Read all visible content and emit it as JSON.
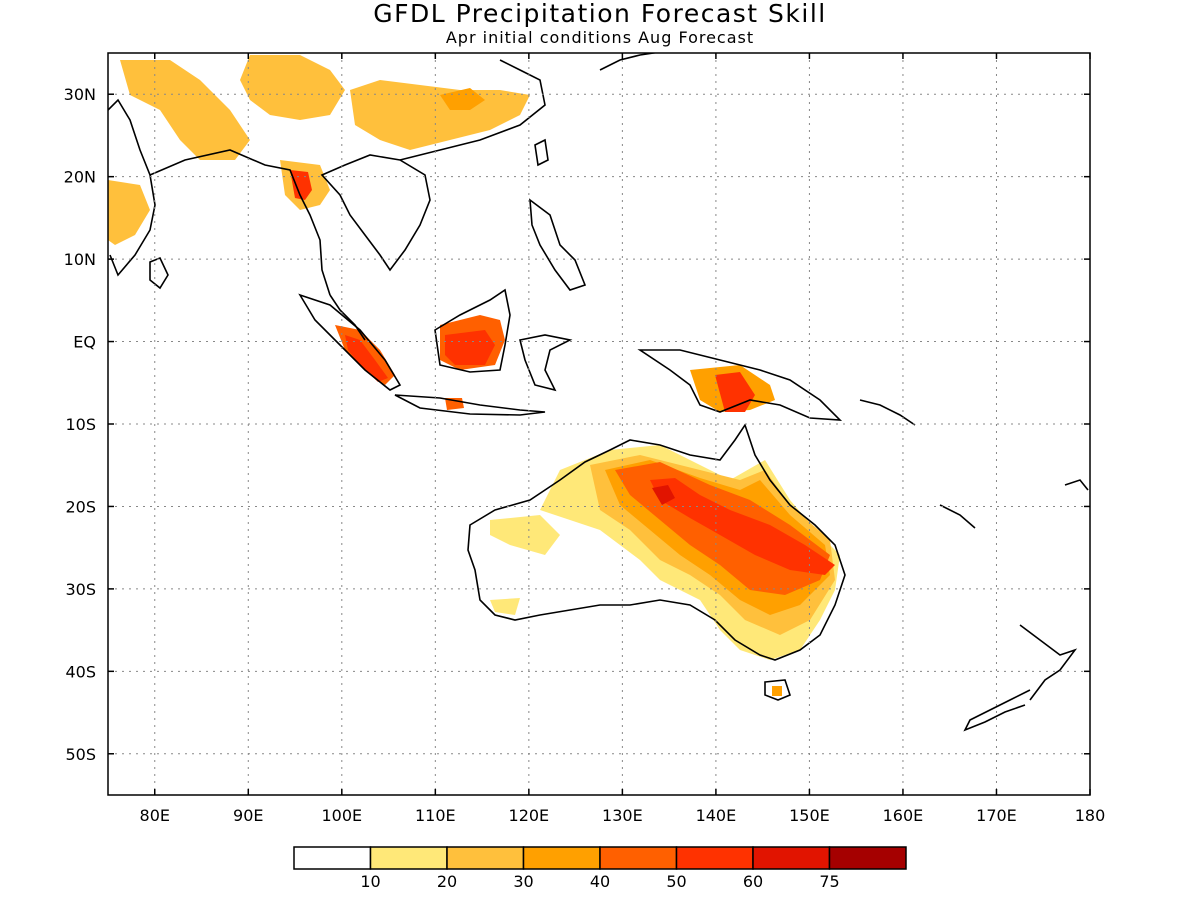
{
  "title": "GFDL Precipitation Forecast Skill",
  "subtitle": "Apr initial conditions  Aug Forecast",
  "map": {
    "lon_range": [
      75,
      180
    ],
    "lat_range": [
      -55,
      35
    ],
    "x_ticks": [
      "80E",
      "90E",
      "100E",
      "110E",
      "120E",
      "130E",
      "140E",
      "150E",
      "160E",
      "170E",
      "180"
    ],
    "y_ticks": [
      "30N",
      "20N",
      "10N",
      "EQ",
      "10S",
      "20S",
      "30S",
      "40S",
      "50S"
    ],
    "grid": "dotted"
  },
  "colorbar": {
    "colors": [
      "#ffffff",
      "#ffe878",
      "#ffc03c",
      "#ffa000",
      "#ff6000",
      "#ff3200",
      "#e11400",
      "#a50000"
    ],
    "labels": [
      "10",
      "20",
      "30",
      "40",
      "50",
      "60",
      "75"
    ]
  }
}
